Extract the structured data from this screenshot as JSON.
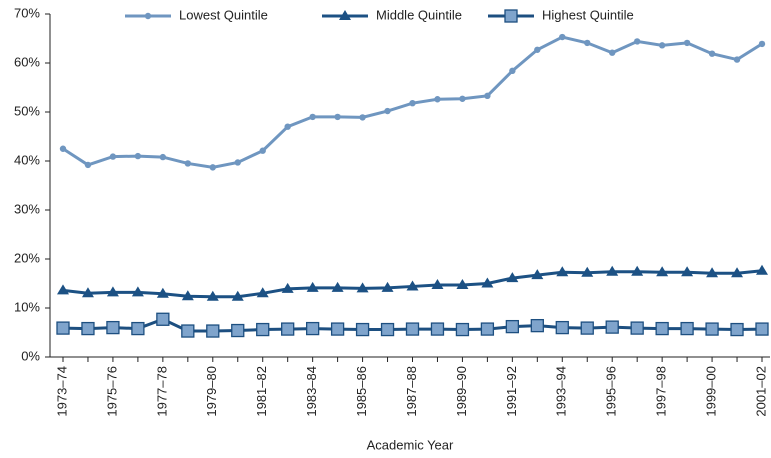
{
  "chart_data": {
    "type": "line",
    "x_label": "Academic Year",
    "categories": [
      "1973–74",
      null,
      "1975–76",
      null,
      "1977–78",
      null,
      "1979–80",
      null,
      "1981–82",
      null,
      "1983–84",
      null,
      "1985–86",
      null,
      "1987–88",
      null,
      "1989–90",
      null,
      "1991–92",
      null,
      "1993–94",
      null,
      "1995–96",
      null,
      "1997–98",
      null,
      "1999–00",
      null,
      "2001–02"
    ],
    "series": [
      {
        "name": "Lowest Quintile",
        "color": "#6f96c0",
        "marker": "circle",
        "values": [
          42.5,
          39.2,
          40.9,
          41.0,
          40.8,
          39.5,
          38.7,
          39.7,
          42.1,
          47.0,
          49.0,
          49.0,
          48.9,
          50.2,
          51.8,
          52.6,
          52.7,
          53.3,
          58.4,
          62.7,
          65.3,
          64.1,
          62.1,
          64.4,
          63.6,
          64.1,
          61.9,
          60.7,
          63.9
        ]
      },
      {
        "name": "Middle Quintile",
        "color": "#1c5184",
        "marker": "triangle",
        "values": [
          13.6,
          13.0,
          13.2,
          13.2,
          12.9,
          12.4,
          12.3,
          12.3,
          13.0,
          13.9,
          14.1,
          14.1,
          14.0,
          14.1,
          14.4,
          14.7,
          14.7,
          15.0,
          16.1,
          16.7,
          17.3,
          17.2,
          17.4,
          17.4,
          17.3,
          17.3,
          17.1,
          17.1,
          17.6
        ]
      },
      {
        "name": "Highest Quintile",
        "color": "#1d4f80",
        "marker_fill": "#7fa4cc",
        "marker": "square",
        "values": [
          5.9,
          5.8,
          6.0,
          5.8,
          7.7,
          5.3,
          5.3,
          5.4,
          5.6,
          5.7,
          5.8,
          5.7,
          5.6,
          5.6,
          5.7,
          5.7,
          5.6,
          5.7,
          6.2,
          6.4,
          6.0,
          5.9,
          6.1,
          5.9,
          5.8,
          5.8,
          5.7,
          5.6,
          5.7
        ]
      }
    ],
    "ylim": [
      0,
      70
    ],
    "yticks": [
      {
        "value": 0,
        "label": "0%"
      },
      {
        "value": 10,
        "label": "10%"
      },
      {
        "value": 20,
        "label": "20%"
      },
      {
        "value": 30,
        "label": "30%"
      },
      {
        "value": 40,
        "label": "40%"
      },
      {
        "value": 50,
        "label": "50%"
      },
      {
        "value": 60,
        "label": "60%"
      },
      {
        "value": 70,
        "label": "70%"
      }
    ],
    "legend": "top"
  }
}
